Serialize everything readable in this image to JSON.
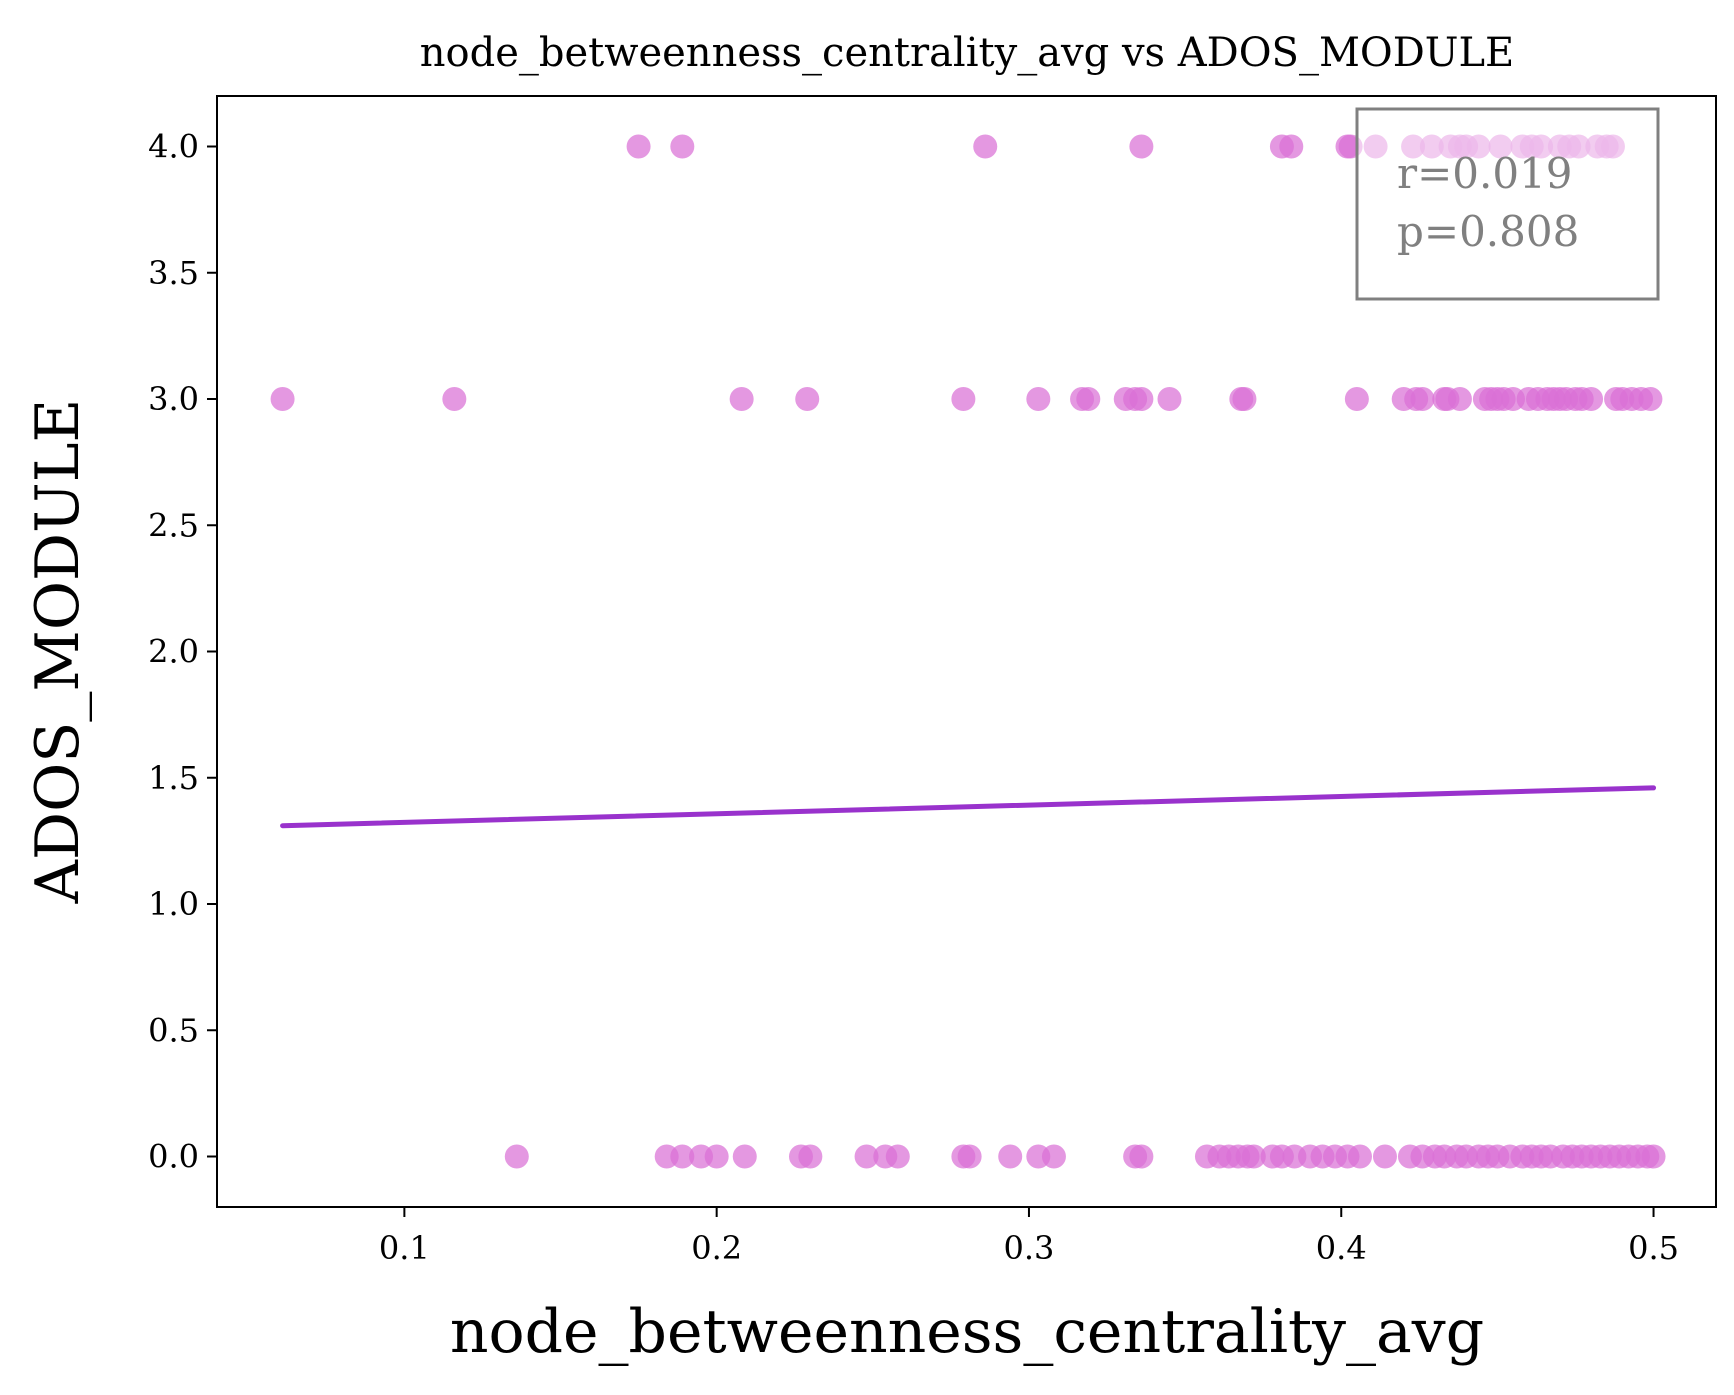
{
  "chart_data": {
    "type": "scatter",
    "title": "node_betweenness_centrality_avg vs ADOS_MODULE",
    "xlabel": "node_betweenness_centrality_avg",
    "ylabel": "ADOS_MODULE",
    "xlim": [
      0.04,
      0.52
    ],
    "ylim": [
      -0.2,
      4.2
    ],
    "xticks": [
      0.1,
      0.2,
      0.3,
      0.4,
      0.5
    ],
    "yticks": [
      0.0,
      0.5,
      1.0,
      1.5,
      2.0,
      2.5,
      3.0,
      3.5,
      4.0
    ],
    "grid": false,
    "point_color": "#da70d6",
    "line_color": "#9932cc",
    "regression_line": {
      "x": [
        0.061,
        0.5
      ],
      "y": [
        1.31,
        1.46
      ]
    },
    "annotation": {
      "r": "r=0.019",
      "p": "p=0.808"
    },
    "series": [
      {
        "x": [
          0.175,
          0.189,
          0.286,
          0.336,
          0.381,
          0.384,
          0.402,
          0.403,
          0.411,
          0.423,
          0.429,
          0.435,
          0.438,
          0.44,
          0.444,
          0.451,
          0.458,
          0.461,
          0.464,
          0.47,
          0.473,
          0.476,
          0.482,
          0.485,
          0.487
        ],
        "y": [
          4,
          4,
          4,
          4,
          4,
          4,
          4,
          4,
          4,
          4,
          4,
          4,
          4,
          4,
          4,
          4,
          4,
          4,
          4,
          4,
          4,
          4,
          4,
          4,
          4
        ]
      },
      {
        "x": [
          0.061,
          0.116,
          0.208,
          0.229,
          0.279,
          0.303,
          0.317,
          0.319,
          0.331,
          0.334,
          0.336,
          0.345,
          0.368,
          0.369,
          0.405,
          0.42,
          0.424,
          0.426,
          0.433,
          0.434,
          0.438,
          0.446,
          0.448,
          0.45,
          0.452,
          0.455,
          0.46,
          0.463,
          0.466,
          0.468,
          0.47,
          0.472,
          0.475,
          0.477,
          0.48,
          0.488,
          0.49,
          0.493,
          0.496,
          0.499
        ],
        "y": [
          3,
          3,
          3,
          3,
          3,
          3,
          3,
          3,
          3,
          3,
          3,
          3,
          3,
          3,
          3,
          3,
          3,
          3,
          3,
          3,
          3,
          3,
          3,
          3,
          3,
          3,
          3,
          3,
          3,
          3,
          3,
          3,
          3,
          3,
          3,
          3,
          3,
          3,
          3,
          3
        ]
      },
      {
        "x": [
          0.136,
          0.184,
          0.189,
          0.195,
          0.2,
          0.209,
          0.227,
          0.23,
          0.248,
          0.254,
          0.258,
          0.279,
          0.281,
          0.294,
          0.303,
          0.308,
          0.334,
          0.336,
          0.357,
          0.361,
          0.364,
          0.367,
          0.37,
          0.372,
          0.378,
          0.381,
          0.385,
          0.39,
          0.394,
          0.398,
          0.402,
          0.406,
          0.414,
          0.422,
          0.426,
          0.43,
          0.433,
          0.437,
          0.44,
          0.444,
          0.447,
          0.45,
          0.454,
          0.458,
          0.461,
          0.464,
          0.467,
          0.471,
          0.474,
          0.477,
          0.48,
          0.483,
          0.486,
          0.489,
          0.492,
          0.495,
          0.498,
          0.5
        ],
        "y": [
          0,
          0,
          0,
          0,
          0,
          0,
          0,
          0,
          0,
          0,
          0,
          0,
          0,
          0,
          0,
          0,
          0,
          0,
          0,
          0,
          0,
          0,
          0,
          0,
          0,
          0,
          0,
          0,
          0,
          0,
          0,
          0,
          0,
          0,
          0,
          0,
          0,
          0,
          0,
          0,
          0,
          0,
          0,
          0,
          0,
          0,
          0,
          0,
          0,
          0,
          0,
          0,
          0,
          0,
          0,
          0,
          0,
          0
        ]
      }
    ]
  }
}
